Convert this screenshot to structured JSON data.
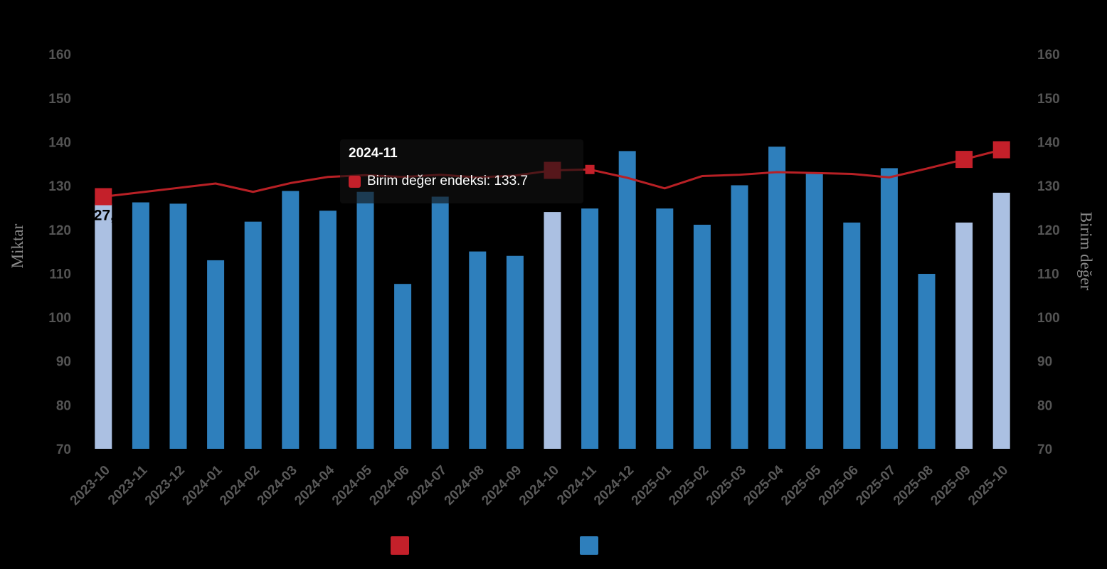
{
  "axes": {
    "left_title": "Miktar",
    "right_title": "Birim değer",
    "y_ticks": [
      70,
      80,
      90,
      100,
      110,
      120,
      130,
      140,
      150,
      160
    ]
  },
  "tooltip": {
    "title": "2024-11",
    "row_text": "Birim değer endeksi: 133.7",
    "swatch_color": "#c4202a"
  },
  "legend": {
    "items": [
      {
        "series": "Birim değer endeksi",
        "color": "#c4202a"
      },
      {
        "series": "Miktar",
        "color": "#2e7fbc"
      }
    ]
  },
  "chart_data": {
    "type": "bar",
    "title": "",
    "xlabel": "",
    "ylabel_left": "Miktar",
    "ylabel_right": "Birim değer",
    "ylim": [
      70,
      160
    ],
    "y_tick_step": 10,
    "grid": false,
    "legend_position": "bottom",
    "categories": [
      "2023-10",
      "2023-11",
      "2023-12",
      "2024-01",
      "2024-02",
      "2024-03",
      "2024-04",
      "2024-05",
      "2024-06",
      "2024-07",
      "2024-08",
      "2024-09",
      "2024-10",
      "2024-11",
      "2024-12",
      "2025-01",
      "2025-02",
      "2025-03",
      "2025-04",
      "2025-05",
      "2025-06",
      "2025-07",
      "2025-08",
      "2025-09",
      "2025-10"
    ],
    "series": [
      {
        "name": "Miktar",
        "type": "bar",
        "axis": "left",
        "color": "#2e7fbc",
        "highlight_color": "#abc0e2",
        "highlighted_categories": [
          "2023-10",
          "2024-10",
          "2025-09",
          "2025-10"
        ],
        "values": [
          125.9,
          126.2,
          125.9,
          113.0,
          121.8,
          128.8,
          124.3,
          128.6,
          107.6,
          127.5,
          115.0,
          114.0,
          124.0,
          124.8,
          137.9,
          124.8,
          121.1,
          130.1,
          138.9,
          133.1,
          121.6,
          134.0,
          109.9,
          121.6,
          128.4
        ]
      },
      {
        "name": "Birim değer endeksi",
        "type": "line",
        "axis": "right",
        "color": "#b82025",
        "marker_color": "#c4202a",
        "marker_categories": [
          "2023-10",
          "2024-10",
          "2025-09",
          "2025-10"
        ],
        "hover_category": "2024-11",
        "hover_value": "133.7",
        "point_label": {
          "category": "2023-10",
          "text": "127,5"
        },
        "values": [
          127.5,
          128.5,
          129.5,
          130.5,
          128.6,
          130.6,
          132.0,
          132.4,
          132.0,
          132.5,
          131.9,
          132.3,
          133.5,
          133.7,
          131.8,
          129.4,
          132.2,
          132.5,
          133.1,
          132.9,
          132.7,
          131.9,
          133.9,
          136.0,
          138.2
        ]
      }
    ]
  }
}
